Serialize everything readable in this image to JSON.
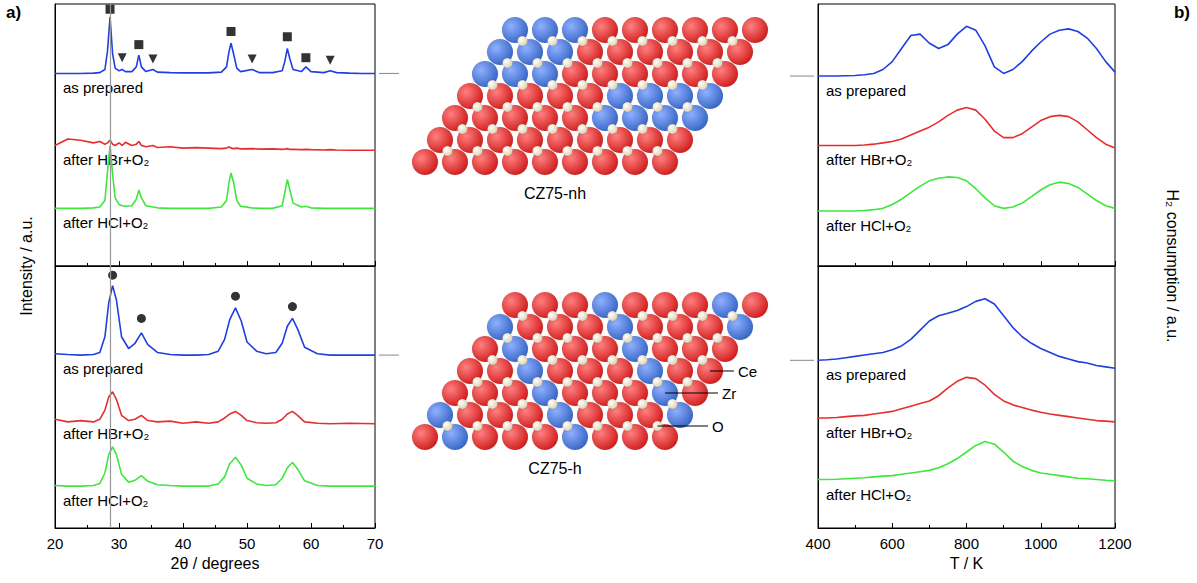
{
  "chart_data": [
    {
      "type": "line",
      "panel": "a)",
      "ylabel": "Intensity / a.u.",
      "x": [
        20,
        22,
        24,
        26,
        27,
        27.8,
        28.2,
        28.6,
        29.0,
        29.4,
        30,
        30.5,
        31,
        32,
        32.7,
        33.1,
        33.5,
        34.2,
        35.3,
        36,
        38,
        40,
        42,
        44,
        46,
        46.8,
        47.2,
        47.5,
        47.9,
        48.4,
        49,
        50.8,
        52,
        54,
        55.5,
        55.9,
        56.3,
        56.7,
        57.2,
        58.5,
        59.2,
        60,
        62,
        63,
        64,
        66,
        68,
        70
      ],
      "xlim": [
        20,
        70
      ],
      "xticks": [
        20,
        30,
        40,
        50,
        60,
        70
      ],
      "ylim": [
        0,
        10
      ],
      "yticks": [],
      "tick_labels": false,
      "grid": false,
      "reference_line": 28.6,
      "series": [
        {
          "name": "as prepared",
          "color": "#1f3fe0",
          "values": [
            7.35,
            7.35,
            7.35,
            7.36,
            7.38,
            7.5,
            8.2,
            9.5,
            8.1,
            7.55,
            7.45,
            7.5,
            7.42,
            7.42,
            7.6,
            8.05,
            7.6,
            7.42,
            7.5,
            7.4,
            7.38,
            7.37,
            7.37,
            7.37,
            7.4,
            7.6,
            8.2,
            8.5,
            8.1,
            7.55,
            7.42,
            7.5,
            7.38,
            7.38,
            7.45,
            7.8,
            8.3,
            7.9,
            7.5,
            7.42,
            7.6,
            7.42,
            7.38,
            7.45,
            7.38,
            7.36,
            7.35,
            7.35
          ]
        },
        {
          "name": "after HBr+O₂",
          "color": "#e62e2e",
          "values": [
            4.6,
            4.85,
            4.8,
            4.7,
            4.75,
            4.65,
            4.7,
            4.8,
            4.65,
            4.6,
            4.7,
            4.6,
            4.72,
            4.6,
            4.65,
            4.75,
            4.6,
            4.55,
            4.6,
            4.52,
            4.55,
            4.5,
            4.52,
            4.5,
            4.48,
            4.5,
            4.55,
            4.5,
            4.48,
            4.5,
            4.47,
            4.48,
            4.46,
            4.47,
            4.45,
            4.46,
            4.48,
            4.45,
            4.45,
            4.44,
            4.45,
            4.44,
            4.43,
            4.44,
            4.43,
            4.42,
            4.42,
            4.42
          ]
        },
        {
          "name": "after HCl+O₂",
          "color": "#3ee63e",
          "values": [
            2.2,
            2.2,
            2.2,
            2.22,
            2.25,
            2.5,
            3.6,
            4.6,
            3.5,
            2.6,
            2.35,
            2.3,
            2.28,
            2.3,
            2.55,
            2.9,
            2.6,
            2.3,
            2.25,
            2.22,
            2.2,
            2.2,
            2.2,
            2.2,
            2.25,
            2.5,
            3.2,
            3.55,
            3.2,
            2.5,
            2.28,
            2.22,
            2.2,
            2.2,
            2.3,
            2.8,
            3.3,
            2.9,
            2.4,
            2.25,
            2.28,
            2.22,
            2.2,
            2.2,
            2.2,
            2.2,
            2.2,
            2.2
          ]
        },
        {
          "type": "scatter",
          "marker": "square",
          "color": "#000000",
          "x": [
            28.6,
            33.1,
            47.5,
            56.3,
            59.2
          ],
          "values": [
            9.8,
            8.45,
            8.95,
            8.75,
            7.95
          ]
        },
        {
          "type": "scatter",
          "marker": "triangle_down",
          "color": "#000000",
          "x": [
            30.5,
            35.3,
            50.8,
            63.0
          ],
          "values": [
            7.95,
            7.9,
            7.9,
            7.85
          ]
        }
      ]
    },
    {
      "type": "line",
      "xlabel": "2θ / degrees",
      "x": [
        20,
        22,
        24,
        26,
        27,
        27.8,
        28.4,
        29.0,
        29.6,
        30.4,
        31.5,
        32.5,
        33.5,
        34.5,
        36,
        38,
        40,
        42,
        44,
        45.5,
        46.5,
        47.3,
        48.2,
        49.1,
        50,
        51.5,
        53,
        54.5,
        55.5,
        56.3,
        57.1,
        57.9,
        59,
        61,
        63,
        66,
        70
      ],
      "xlim": [
        20,
        70
      ],
      "xticks": [
        20,
        30,
        40,
        50,
        60,
        70
      ],
      "ylim": [
        0,
        10
      ],
      "yticks": [],
      "tick_labels": "x",
      "grid": false,
      "reference_line": 28.6,
      "series": [
        {
          "name": "as prepared",
          "color": "#1f3fe0",
          "values": [
            6.65,
            6.62,
            6.6,
            6.62,
            6.7,
            7.3,
            8.6,
            9.25,
            8.7,
            7.3,
            6.85,
            7.05,
            7.45,
            7.0,
            6.7,
            6.62,
            6.6,
            6.6,
            6.62,
            6.75,
            7.2,
            7.95,
            8.4,
            7.9,
            7.1,
            6.75,
            6.65,
            6.7,
            7.05,
            7.7,
            8.0,
            7.6,
            6.9,
            6.65,
            6.6,
            6.6,
            6.6
          ]
        },
        {
          "name": "after HBr+O₂",
          "color": "#e62e2e",
          "values": [
            4.15,
            4.05,
            4.1,
            4.05,
            4.15,
            4.5,
            5.0,
            5.2,
            4.9,
            4.3,
            4.1,
            4.15,
            4.3,
            4.1,
            4.05,
            4.08,
            4.0,
            4.05,
            4.0,
            4.05,
            4.2,
            4.35,
            4.45,
            4.3,
            4.1,
            4.02,
            4.0,
            4.02,
            4.15,
            4.35,
            4.45,
            4.3,
            4.05,
            4.0,
            3.98,
            4.0,
            3.98
          ]
        },
        {
          "name": "after HCl+O₂",
          "color": "#3ee63e",
          "values": [
            1.62,
            1.6,
            1.6,
            1.62,
            1.7,
            2.1,
            2.8,
            3.1,
            2.8,
            2.05,
            1.75,
            1.82,
            2.0,
            1.78,
            1.65,
            1.62,
            1.6,
            1.6,
            1.6,
            1.68,
            1.95,
            2.45,
            2.7,
            2.4,
            1.9,
            1.68,
            1.62,
            1.65,
            1.9,
            2.3,
            2.5,
            2.25,
            1.8,
            1.62,
            1.6,
            1.6,
            1.6
          ]
        },
        {
          "type": "scatter",
          "marker": "circle",
          "color": "#000000",
          "x": [
            29.0,
            33.5,
            48.2,
            57.1
          ],
          "values": [
            9.65,
            8.0,
            8.85,
            8.45
          ]
        }
      ]
    },
    {
      "type": "line",
      "panel": "b)",
      "ylabel": "H₂ consumption / a.u.",
      "x": [
        400,
        425,
        450,
        475,
        500,
        525,
        550,
        575,
        600,
        625,
        650,
        675,
        700,
        725,
        750,
        775,
        800,
        825,
        850,
        875,
        900,
        925,
        950,
        975,
        1000,
        1025,
        1050,
        1075,
        1100,
        1125,
        1150,
        1175,
        1200
      ],
      "xlim": [
        400,
        1200
      ],
      "xticks": [
        400,
        600,
        800,
        1000,
        1200
      ],
      "ylim": [
        0,
        10
      ],
      "yticks": [],
      "tick_labels": false,
      "grid": false,
      "series": [
        {
          "name": "as prepared",
          "color": "#1f3fe0",
          "values": [
            7.25,
            7.25,
            7.25,
            7.26,
            7.27,
            7.3,
            7.35,
            7.5,
            7.8,
            8.3,
            8.8,
            8.85,
            8.5,
            8.3,
            8.45,
            8.85,
            9.15,
            9.0,
            8.4,
            7.6,
            7.35,
            7.5,
            7.8,
            8.2,
            8.55,
            8.85,
            9.0,
            9.05,
            8.95,
            8.7,
            8.3,
            7.8,
            7.4
          ]
        },
        {
          "name": "after HBr+O₂",
          "color": "#e62e2e",
          "values": [
            4.6,
            4.6,
            4.6,
            4.6,
            4.6,
            4.62,
            4.65,
            4.7,
            4.75,
            4.85,
            5.0,
            5.15,
            5.3,
            5.5,
            5.75,
            5.95,
            6.05,
            5.95,
            5.6,
            5.15,
            4.9,
            4.9,
            5.05,
            5.3,
            5.55,
            5.7,
            5.75,
            5.7,
            5.5,
            5.2,
            4.9,
            4.65,
            4.5
          ]
        },
        {
          "name": "after HCl+O₂",
          "color": "#3ee63e",
          "values": [
            2.1,
            2.1,
            2.1,
            2.1,
            2.1,
            2.12,
            2.15,
            2.2,
            2.35,
            2.55,
            2.8,
            3.05,
            3.25,
            3.35,
            3.4,
            3.38,
            3.25,
            2.95,
            2.6,
            2.3,
            2.2,
            2.25,
            2.4,
            2.65,
            2.9,
            3.1,
            3.2,
            3.15,
            3.0,
            2.75,
            2.5,
            2.3,
            2.2
          ]
        }
      ]
    },
    {
      "type": "line",
      "xlabel": "T / K",
      "x": [
        400,
        425,
        450,
        475,
        500,
        525,
        550,
        575,
        600,
        625,
        650,
        675,
        700,
        725,
        750,
        775,
        800,
        825,
        850,
        875,
        900,
        925,
        950,
        975,
        1000,
        1025,
        1050,
        1075,
        1100,
        1125,
        1150,
        1175,
        1200
      ],
      "xlim": [
        400,
        1200
      ],
      "xticks": [
        400,
        600,
        800,
        1000,
        1200
      ],
      "ylim": [
        0,
        10
      ],
      "yticks": [],
      "tick_labels": "x",
      "grid": false,
      "series": [
        {
          "name": "as prepared",
          "color": "#1f3fe0",
          "values": [
            6.4,
            6.42,
            6.45,
            6.5,
            6.55,
            6.6,
            6.65,
            6.7,
            6.8,
            6.95,
            7.2,
            7.55,
            7.9,
            8.1,
            8.2,
            8.3,
            8.45,
            8.65,
            8.75,
            8.55,
            8.1,
            7.65,
            7.3,
            7.05,
            6.85,
            6.7,
            6.55,
            6.45,
            6.35,
            6.3,
            6.2,
            6.15,
            6.1
          ]
        },
        {
          "name": "after HBr+O₂",
          "color": "#e62e2e",
          "values": [
            4.2,
            4.2,
            4.22,
            4.25,
            4.28,
            4.3,
            4.35,
            4.4,
            4.45,
            4.55,
            4.65,
            4.75,
            4.85,
            5.05,
            5.35,
            5.6,
            5.75,
            5.7,
            5.45,
            5.1,
            4.85,
            4.7,
            4.6,
            4.5,
            4.42,
            4.35,
            4.3,
            4.25,
            4.2,
            4.15,
            4.1,
            4.08,
            4.05
          ]
        },
        {
          "name": "after HCl+O₂",
          "color": "#3ee63e",
          "values": [
            1.85,
            1.85,
            1.86,
            1.88,
            1.9,
            1.92,
            1.95,
            1.98,
            2.0,
            2.05,
            2.1,
            2.15,
            2.2,
            2.3,
            2.45,
            2.65,
            2.9,
            3.15,
            3.3,
            3.2,
            2.9,
            2.55,
            2.35,
            2.2,
            2.1,
            2.05,
            2.0,
            1.95,
            1.9,
            1.88,
            1.85,
            1.82,
            1.8
          ]
        }
      ]
    }
  ],
  "diagram": {
    "structures": [
      {
        "label": "CZ75-nh"
      },
      {
        "label": "CZ75-h",
        "atom_labels": [
          "Ce",
          "Zr",
          "O"
        ]
      }
    ]
  }
}
